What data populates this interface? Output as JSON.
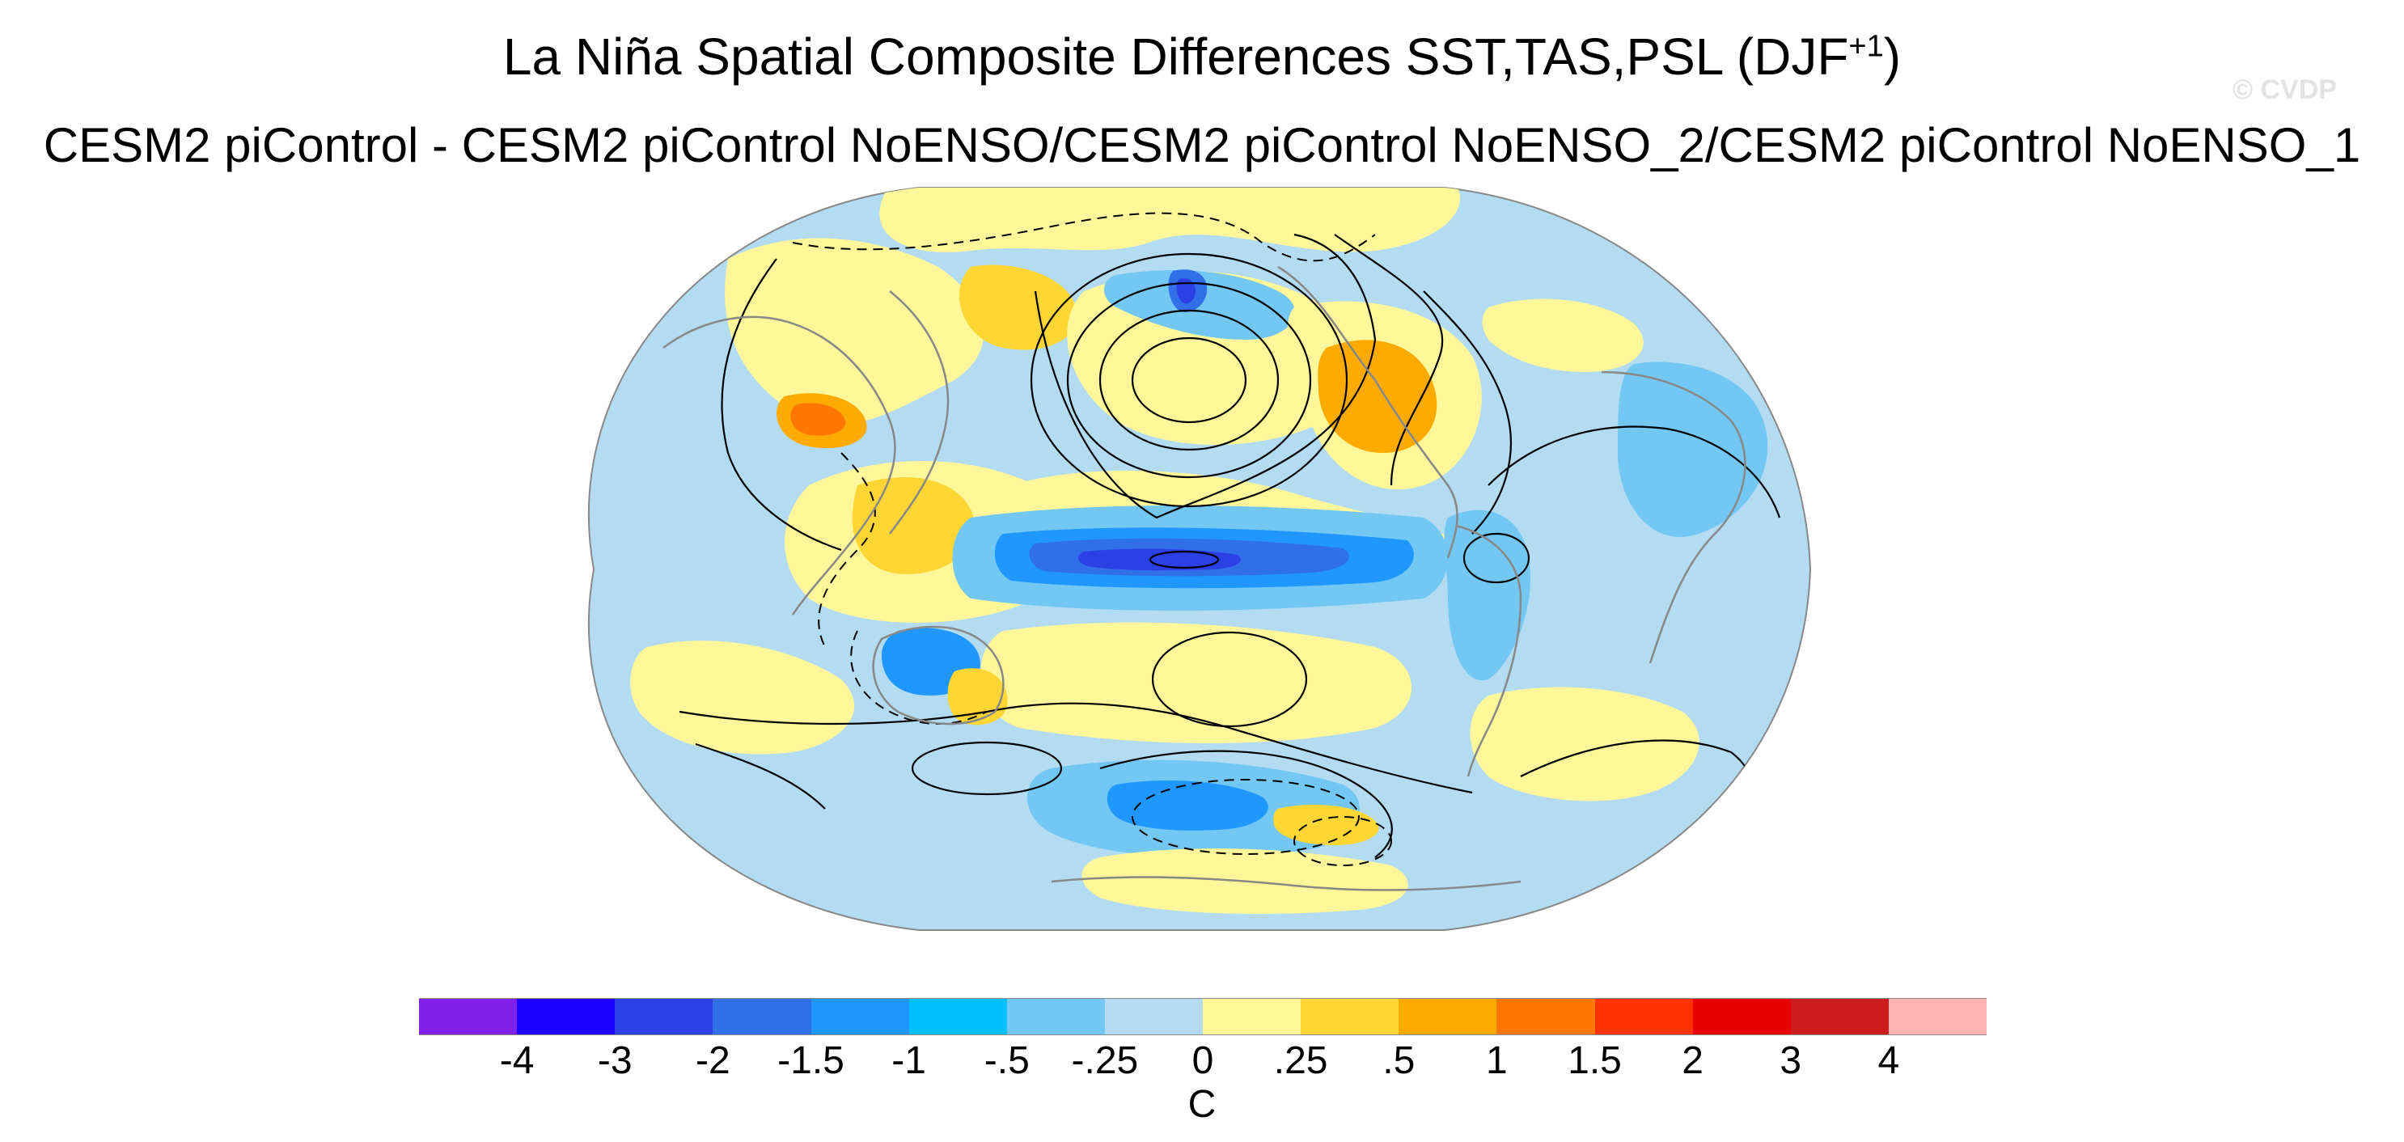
{
  "figure": {
    "title_main": "La Niña Spatial Composite Differences SST,TAS,PSL (DJF",
    "title_sup": "+1",
    "title_close": ")",
    "subtitle": "CESM2 piControl - CESM2 piControl NoENSO/CESM2 piControl NoENSO_2/CESM2 piControl NoENSO_1",
    "watermark": "© CVDP",
    "projection": "robinson",
    "map_colors": {
      "background_neutral": "#b3dcf2",
      "coastline": "#888888",
      "contour": "#000000"
    }
  },
  "colorbar": {
    "units": "C",
    "colors": [
      "#7f1fe8",
      "#1c00ff",
      "#2b40e5",
      "#306fe8",
      "#1f97ff",
      "#00bfff",
      "#72c8f2",
      "#b3dcf2",
      "#fff799",
      "#ffd633",
      "#ffaa00",
      "#ff7700",
      "#ff3300",
      "#e80000",
      "#cc1c1c",
      "#ffb3b3"
    ],
    "labels": [
      "-4",
      "-3",
      "-2",
      "-1.5",
      "-1",
      "-.5",
      "-.25",
      "0",
      ".25",
      ".5",
      "1",
      "1.5",
      "2",
      "3",
      "4"
    ]
  }
}
